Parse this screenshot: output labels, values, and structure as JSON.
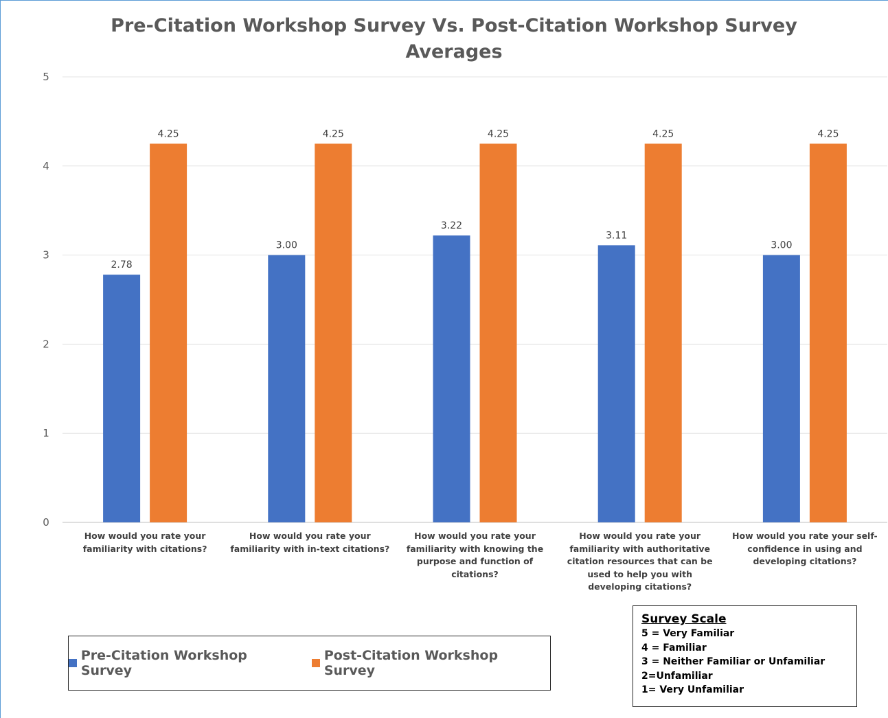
{
  "chart_data": {
    "type": "bar",
    "title": "Pre-Citation Workshop Survey Vs. Post-Citation Workshop Survey Averages",
    "categories": [
      "How would you rate your familiarity with citations?",
      "How would you rate your familiarity with in-text citations?",
      "How would you rate your familiarity with knowing the purpose and function of citations?",
      "How would you rate your familiarity with authoritative citation resources that can be used to help you with developing citations?",
      "How would you rate your self-confidence in using and developing citations?"
    ],
    "series": [
      {
        "name": "Pre-Citation Workshop Survey",
        "color": "#4472c4",
        "values": [
          2.78,
          3,
          3.22,
          3.11,
          3
        ],
        "value_labels": [
          "2.78",
          "3.00",
          "3.22",
          "3.11",
          "3.00"
        ]
      },
      {
        "name": "Post-Citation Workshop Survey",
        "color": "#ed7d31",
        "values": [
          4.25,
          4.25,
          4.25,
          4.25,
          4.25
        ],
        "value_labels": [
          "4.25",
          "4.25",
          "4.25",
          "4.25",
          "4.25"
        ]
      }
    ],
    "ylim": [
      0,
      5
    ],
    "yticks": [
      0,
      1,
      2,
      3,
      4,
      5
    ],
    "grid": true,
    "legend": "bottom",
    "scale_note": {
      "title": "Survey Scale",
      "lines": [
        "5 = Very Familiar",
        "4 = Familiar",
        "3 = Neither Familiar or Unfamiliar",
        "2=Unfamiliar",
        "1= Very Unfamiliar"
      ]
    }
  }
}
